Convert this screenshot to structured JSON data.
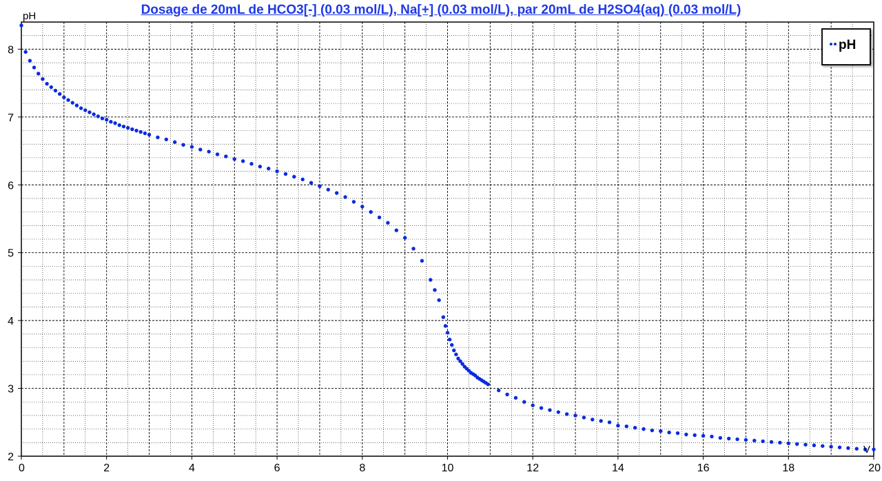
{
  "colors": {
    "series": "#0a2be0",
    "title": "#1f3ae8",
    "grid": "#000000",
    "axis": "#000000"
  },
  "chart_data": {
    "type": "scatter",
    "title": "Dosage de 20mL de HCO3[-] (0.03 mol/L), Na[+] (0.03 mol/L),  par 20mL  de H2SO4(aq) (0.03 mol/L)",
    "xlabel": "V",
    "ylabel": "pH",
    "xlim": [
      0,
      20
    ],
    "ylim": [
      2,
      8.4
    ],
    "x_ticks": [
      "0",
      "2",
      "4",
      "6",
      "8",
      "10",
      "12",
      "14",
      "16",
      "18",
      "20"
    ],
    "y_ticks": [
      "2",
      "3",
      "4",
      "5",
      "6",
      "7",
      "8"
    ],
    "grid": true,
    "legend": {
      "position": "top-right",
      "entries": [
        "pH"
      ]
    },
    "series": [
      {
        "name": "pH",
        "points": [
          [
            0.0,
            8.35
          ],
          [
            0.1,
            7.96
          ],
          [
            0.2,
            7.83
          ],
          [
            0.3,
            7.73
          ],
          [
            0.4,
            7.64
          ],
          [
            0.5,
            7.56
          ],
          [
            0.6,
            7.49
          ],
          [
            0.7,
            7.44
          ],
          [
            0.8,
            7.39
          ],
          [
            0.9,
            7.34
          ],
          [
            1.0,
            7.29
          ],
          [
            1.1,
            7.25
          ],
          [
            1.2,
            7.21
          ],
          [
            1.3,
            7.17
          ],
          [
            1.4,
            7.13
          ],
          [
            1.5,
            7.1
          ],
          [
            1.6,
            7.07
          ],
          [
            1.7,
            7.04
          ],
          [
            1.8,
            7.01
          ],
          [
            1.9,
            6.98
          ],
          [
            2.0,
            6.96
          ],
          [
            2.1,
            6.93
          ],
          [
            2.2,
            6.91
          ],
          [
            2.3,
            6.88
          ],
          [
            2.4,
            6.86
          ],
          [
            2.5,
            6.84
          ],
          [
            2.6,
            6.82
          ],
          [
            2.7,
            6.8
          ],
          [
            2.8,
            6.78
          ],
          [
            2.9,
            6.76
          ],
          [
            3.0,
            6.74
          ],
          [
            3.2,
            6.7
          ],
          [
            3.4,
            6.67
          ],
          [
            3.6,
            6.63
          ],
          [
            3.8,
            6.59
          ],
          [
            4.0,
            6.56
          ],
          [
            4.2,
            6.52
          ],
          [
            4.4,
            6.49
          ],
          [
            4.6,
            6.45
          ],
          [
            4.8,
            6.42
          ],
          [
            5.0,
            6.38
          ],
          [
            5.2,
            6.35
          ],
          [
            5.4,
            6.31
          ],
          [
            5.6,
            6.27
          ],
          [
            5.8,
            6.24
          ],
          [
            6.0,
            6.2
          ],
          [
            6.2,
            6.16
          ],
          [
            6.4,
            6.12
          ],
          [
            6.6,
            6.08
          ],
          [
            6.8,
            6.03
          ],
          [
            7.0,
            5.98
          ],
          [
            7.2,
            5.93
          ],
          [
            7.4,
            5.88
          ],
          [
            7.6,
            5.82
          ],
          [
            7.8,
            5.75
          ],
          [
            8.0,
            5.68
          ],
          [
            8.2,
            5.6
          ],
          [
            8.4,
            5.52
          ],
          [
            8.6,
            5.44
          ],
          [
            8.8,
            5.33
          ],
          [
            9.0,
            5.22
          ],
          [
            9.2,
            5.06
          ],
          [
            9.4,
            4.88
          ],
          [
            9.6,
            4.6
          ],
          [
            9.7,
            4.45
          ],
          [
            9.8,
            4.3
          ],
          [
            9.9,
            4.05
          ],
          [
            9.95,
            3.92
          ],
          [
            10.0,
            3.82
          ],
          [
            10.05,
            3.72
          ],
          [
            10.1,
            3.64
          ],
          [
            10.15,
            3.56
          ],
          [
            10.2,
            3.5
          ],
          [
            10.25,
            3.44
          ],
          [
            10.3,
            3.4
          ],
          [
            10.35,
            3.36
          ],
          [
            10.4,
            3.32
          ],
          [
            10.45,
            3.29
          ],
          [
            10.5,
            3.26
          ],
          [
            10.55,
            3.23
          ],
          [
            10.6,
            3.21
          ],
          [
            10.65,
            3.19
          ],
          [
            10.7,
            3.16
          ],
          [
            10.75,
            3.14
          ],
          [
            10.8,
            3.12
          ],
          [
            10.85,
            3.1
          ],
          [
            10.9,
            3.08
          ],
          [
            10.95,
            3.06
          ],
          [
            11.2,
            2.97
          ],
          [
            11.4,
            2.91
          ],
          [
            11.6,
            2.86
          ],
          [
            11.8,
            2.8
          ],
          [
            12.0,
            2.75
          ],
          [
            12.2,
            2.71
          ],
          [
            12.4,
            2.68
          ],
          [
            12.6,
            2.65
          ],
          [
            12.8,
            2.62
          ],
          [
            13.0,
            2.6
          ],
          [
            13.2,
            2.57
          ],
          [
            13.4,
            2.54
          ],
          [
            13.6,
            2.52
          ],
          [
            13.8,
            2.5
          ],
          [
            14.0,
            2.45
          ],
          [
            14.2,
            2.44
          ],
          [
            14.4,
            2.42
          ],
          [
            14.6,
            2.4
          ],
          [
            14.8,
            2.38
          ],
          [
            15.0,
            2.37
          ],
          [
            15.2,
            2.35
          ],
          [
            15.4,
            2.34
          ],
          [
            15.6,
            2.32
          ],
          [
            15.8,
            2.31
          ],
          [
            16.0,
            2.3
          ],
          [
            16.2,
            2.29
          ],
          [
            16.4,
            2.27
          ],
          [
            16.6,
            2.26
          ],
          [
            16.8,
            2.25
          ],
          [
            17.0,
            2.24
          ],
          [
            17.2,
            2.23
          ],
          [
            17.4,
            2.22
          ],
          [
            17.6,
            2.21
          ],
          [
            17.8,
            2.2
          ],
          [
            18.0,
            2.19
          ],
          [
            18.2,
            2.18
          ],
          [
            18.4,
            2.17
          ],
          [
            18.6,
            2.16
          ],
          [
            18.8,
            2.15
          ],
          [
            19.0,
            2.14
          ],
          [
            19.2,
            2.13
          ],
          [
            19.4,
            2.12
          ],
          [
            19.6,
            2.11
          ],
          [
            19.8,
            2.1
          ],
          [
            20.0,
            2.1
          ]
        ]
      }
    ]
  }
}
